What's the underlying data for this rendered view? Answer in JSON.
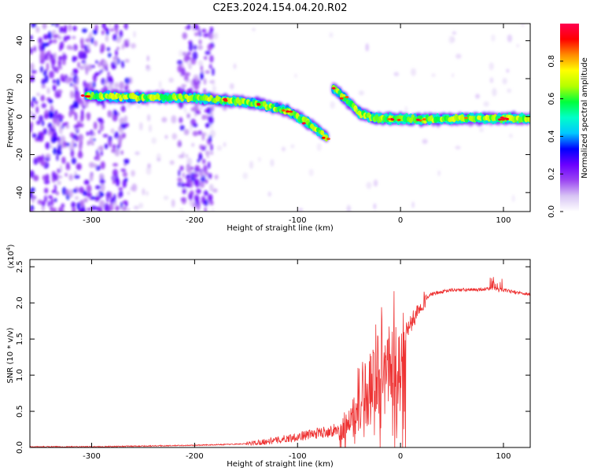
{
  "title": "C2E3.2024.154.04.20.R02",
  "chart_data": [
    {
      "type": "heatmap",
      "xlabel": "Height of straight line (km)",
      "ylabel": "Frequency (Hz)",
      "xlim": [
        -360,
        126
      ],
      "ylim": [
        -50,
        49
      ],
      "xticks": [
        -300,
        -200,
        -100,
        0,
        100
      ],
      "xtick_labels": [
        "-300",
        "-200",
        "-100",
        "0",
        "100"
      ],
      "yticks": [
        -40,
        -20,
        0,
        20,
        40
      ],
      "ytick_labels": [
        "-40",
        "-20",
        "0",
        "20",
        "40"
      ],
      "colorbar": {
        "label": "Normalized spectral amplitude",
        "range": [
          0,
          1
        ],
        "ticks": [
          0.0,
          0.2,
          0.4,
          0.6,
          0.8
        ],
        "tick_labels": [
          "0.0",
          "0.2",
          "0.4",
          "0.6",
          "0.8"
        ],
        "colors": [
          "#ffffff",
          "#d8c4f4",
          "#9b45f2",
          "#6a00ff",
          "#0000ff",
          "#00c8ff",
          "#00ffc8",
          "#00ff3c",
          "#b4ff00",
          "#ffff00",
          "#ff8c00",
          "#ff0000",
          "#ff0050"
        ]
      },
      "ridge": [
        {
          "x": -305,
          "y": 11
        },
        {
          "x": -250,
          "y": 10
        },
        {
          "x": -200,
          "y": 10
        },
        {
          "x": -170,
          "y": 8.5
        },
        {
          "x": -140,
          "y": 7
        },
        {
          "x": -110,
          "y": 3
        },
        {
          "x": -90,
          "y": -3
        },
        {
          "x": -72,
          "y": -11
        },
        {
          "x": -65,
          "y": 15
        },
        {
          "x": -55,
          "y": 10
        },
        {
          "x": -40,
          "y": 2
        },
        {
          "x": -25,
          "y": -1
        },
        {
          "x": -10,
          "y": -1
        },
        {
          "x": 0,
          "y": -1
        },
        {
          "x": 20,
          "y": -1.5
        },
        {
          "x": 60,
          "y": -1
        },
        {
          "x": 100,
          "y": -1
        },
        {
          "x": 126,
          "y": -1
        }
      ]
    },
    {
      "type": "line",
      "xlabel": "Height of straight line (km)",
      "ylabel": "SNR (10 * v/v)",
      "y_multiplier_label": "(x10",
      "y_multiplier_exp": "4",
      "xlim": [
        -360,
        126
      ],
      "ylim": [
        0,
        2.6
      ],
      "xticks": [
        -300,
        -200,
        -100,
        0,
        100
      ],
      "xtick_labels": [
        "-300",
        "-200",
        "-100",
        "0",
        "100"
      ],
      "yticks": [
        0.0,
        0.5,
        1.0,
        1.5,
        2.0,
        2.5
      ],
      "ytick_labels": [
        "0.0",
        "0.5",
        "1.0",
        "1.5",
        "2.0",
        "2.5"
      ],
      "color": "#ee3333",
      "x": [
        -360,
        -300,
        -250,
        -200,
        -150,
        -120,
        -100,
        -80,
        -60,
        -50,
        -40,
        -30,
        -20,
        -10,
        0,
        10,
        20,
        30,
        50,
        70,
        90,
        110,
        126
      ],
      "y": [
        0.01,
        0.01,
        0.02,
        0.03,
        0.05,
        0.1,
        0.15,
        0.2,
        0.25,
        0.35,
        0.8,
        1.2,
        1.4,
        1.5,
        1.55,
        1.7,
        2.0,
        2.12,
        2.18,
        2.18,
        2.2,
        2.15,
        2.12
      ]
    }
  ]
}
